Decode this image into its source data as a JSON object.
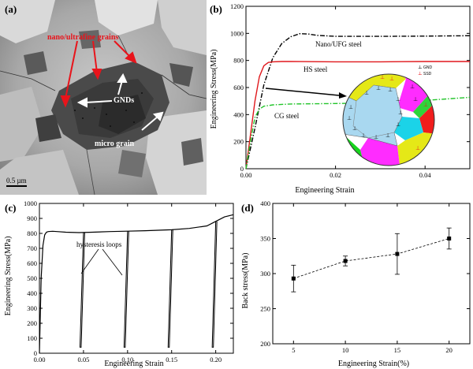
{
  "figure": {
    "panels": [
      {
        "id": "a",
        "label": "(a)",
        "type": "micrograph",
        "annotations": {
          "nano_grains": "nano/ultrafine grains",
          "gnds": "GNDs",
          "micro_grain": "micro grain",
          "scale_bar": "0.5 µm"
        }
      },
      {
        "id": "b",
        "label": "(b)"
      },
      {
        "id": "c",
        "label": "(c)"
      },
      {
        "id": "d",
        "label": "(d)"
      }
    ],
    "colors": {
      "nano_ufg": "#000000",
      "hs": "#e0171b",
      "cg": "#22c42a",
      "inset_center": "#a9d8f0",
      "inset_grains": [
        "#ff2cff",
        "#e5e817",
        "#1bd3e8",
        "#18d41e",
        "#f01d1d",
        "#2fd43a",
        "#ffffff"
      ]
    }
  },
  "chart_data": [
    {
      "type": "line",
      "panel": "b",
      "xlabel": "Engineering Strain",
      "ylabel": "Engineering Stress(MPa)",
      "xlim": [
        0,
        0.05
      ],
      "ylim": [
        0,
        1200
      ],
      "xticks": [
        "0.00",
        "0.02",
        "0.04"
      ],
      "yticks": [
        "0",
        "200",
        "400",
        "600",
        "800",
        "1000",
        "1200"
      ],
      "series": [
        {
          "name": "Nano/UFG steel",
          "style": "dash-dot",
          "x": [
            0,
            0.002,
            0.004,
            0.006,
            0.008,
            0.01,
            0.012,
            0.014,
            0.016,
            0.02,
            0.03,
            0.04,
            0.05
          ],
          "y": [
            0,
            300,
            620,
            820,
            925,
            975,
            998,
            995,
            985,
            978,
            978,
            980,
            983
          ]
        },
        {
          "name": "HS steel",
          "style": "solid",
          "x": [
            0,
            0.001,
            0.002,
            0.003,
            0.004,
            0.005,
            0.006,
            0.008,
            0.01,
            0.02,
            0.03,
            0.04,
            0.05
          ],
          "y": [
            0,
            250,
            500,
            680,
            760,
            785,
            790,
            792,
            792,
            790,
            790,
            792,
            792
          ]
        },
        {
          "name": "CG steel",
          "style": "dash-dot",
          "x": [
            0,
            0.001,
            0.002,
            0.003,
            0.004,
            0.006,
            0.01,
            0.02,
            0.03,
            0.04,
            0.05
          ],
          "y": [
            0,
            200,
            380,
            440,
            462,
            472,
            478,
            482,
            488,
            505,
            527
          ]
        }
      ],
      "annotations": {
        "inset_legend": [
          "GND",
          "SSD"
        ]
      }
    },
    {
      "type": "line",
      "panel": "c",
      "xlabel": "Engineering Strain",
      "ylabel": "Engineering Stress(MPa)",
      "xlim": [
        0,
        0.22
      ],
      "ylim": [
        0,
        1000
      ],
      "xticks": [
        "0.00",
        "0.05",
        "0.10",
        "0.15",
        "0.20"
      ],
      "yticks": [
        "0",
        "100",
        "200",
        "300",
        "400",
        "500",
        "600",
        "700",
        "800",
        "900",
        "1000"
      ],
      "annotation": "hysteresis loops",
      "loops_at_strain": [
        0.05,
        0.1,
        0.15,
        0.2
      ],
      "series": [
        {
          "name": "",
          "x": [
            0,
            0.002,
            0.004,
            0.006,
            0.008,
            0.01,
            0.015,
            0.02,
            0.03,
            0.045,
            0.06,
            0.08,
            0.1,
            0.12,
            0.15,
            0.17,
            0.19,
            0.2,
            0.21,
            0.22
          ],
          "y": [
            0,
            500,
            720,
            790,
            808,
            812,
            814,
            812,
            808,
            805,
            808,
            812,
            815,
            818,
            824,
            833,
            850,
            880,
            910,
            925
          ]
        }
      ]
    },
    {
      "type": "scatter",
      "panel": "d",
      "xlabel": "Engineering Strain(%)",
      "ylabel": "Back stress(MPa)",
      "xlim": [
        3,
        22
      ],
      "ylim": [
        200,
        400
      ],
      "xticks": [
        "5",
        "10",
        "15",
        "20"
      ],
      "yticks": [
        "200",
        "250",
        "300",
        "350",
        "400"
      ],
      "series": [
        {
          "name": "",
          "style": "dashed-line-with-squares",
          "x": [
            5,
            10,
            15,
            20
          ],
          "y": [
            293,
            318,
            328,
            350
          ],
          "err": [
            19,
            7,
            29,
            15
          ]
        }
      ]
    }
  ]
}
